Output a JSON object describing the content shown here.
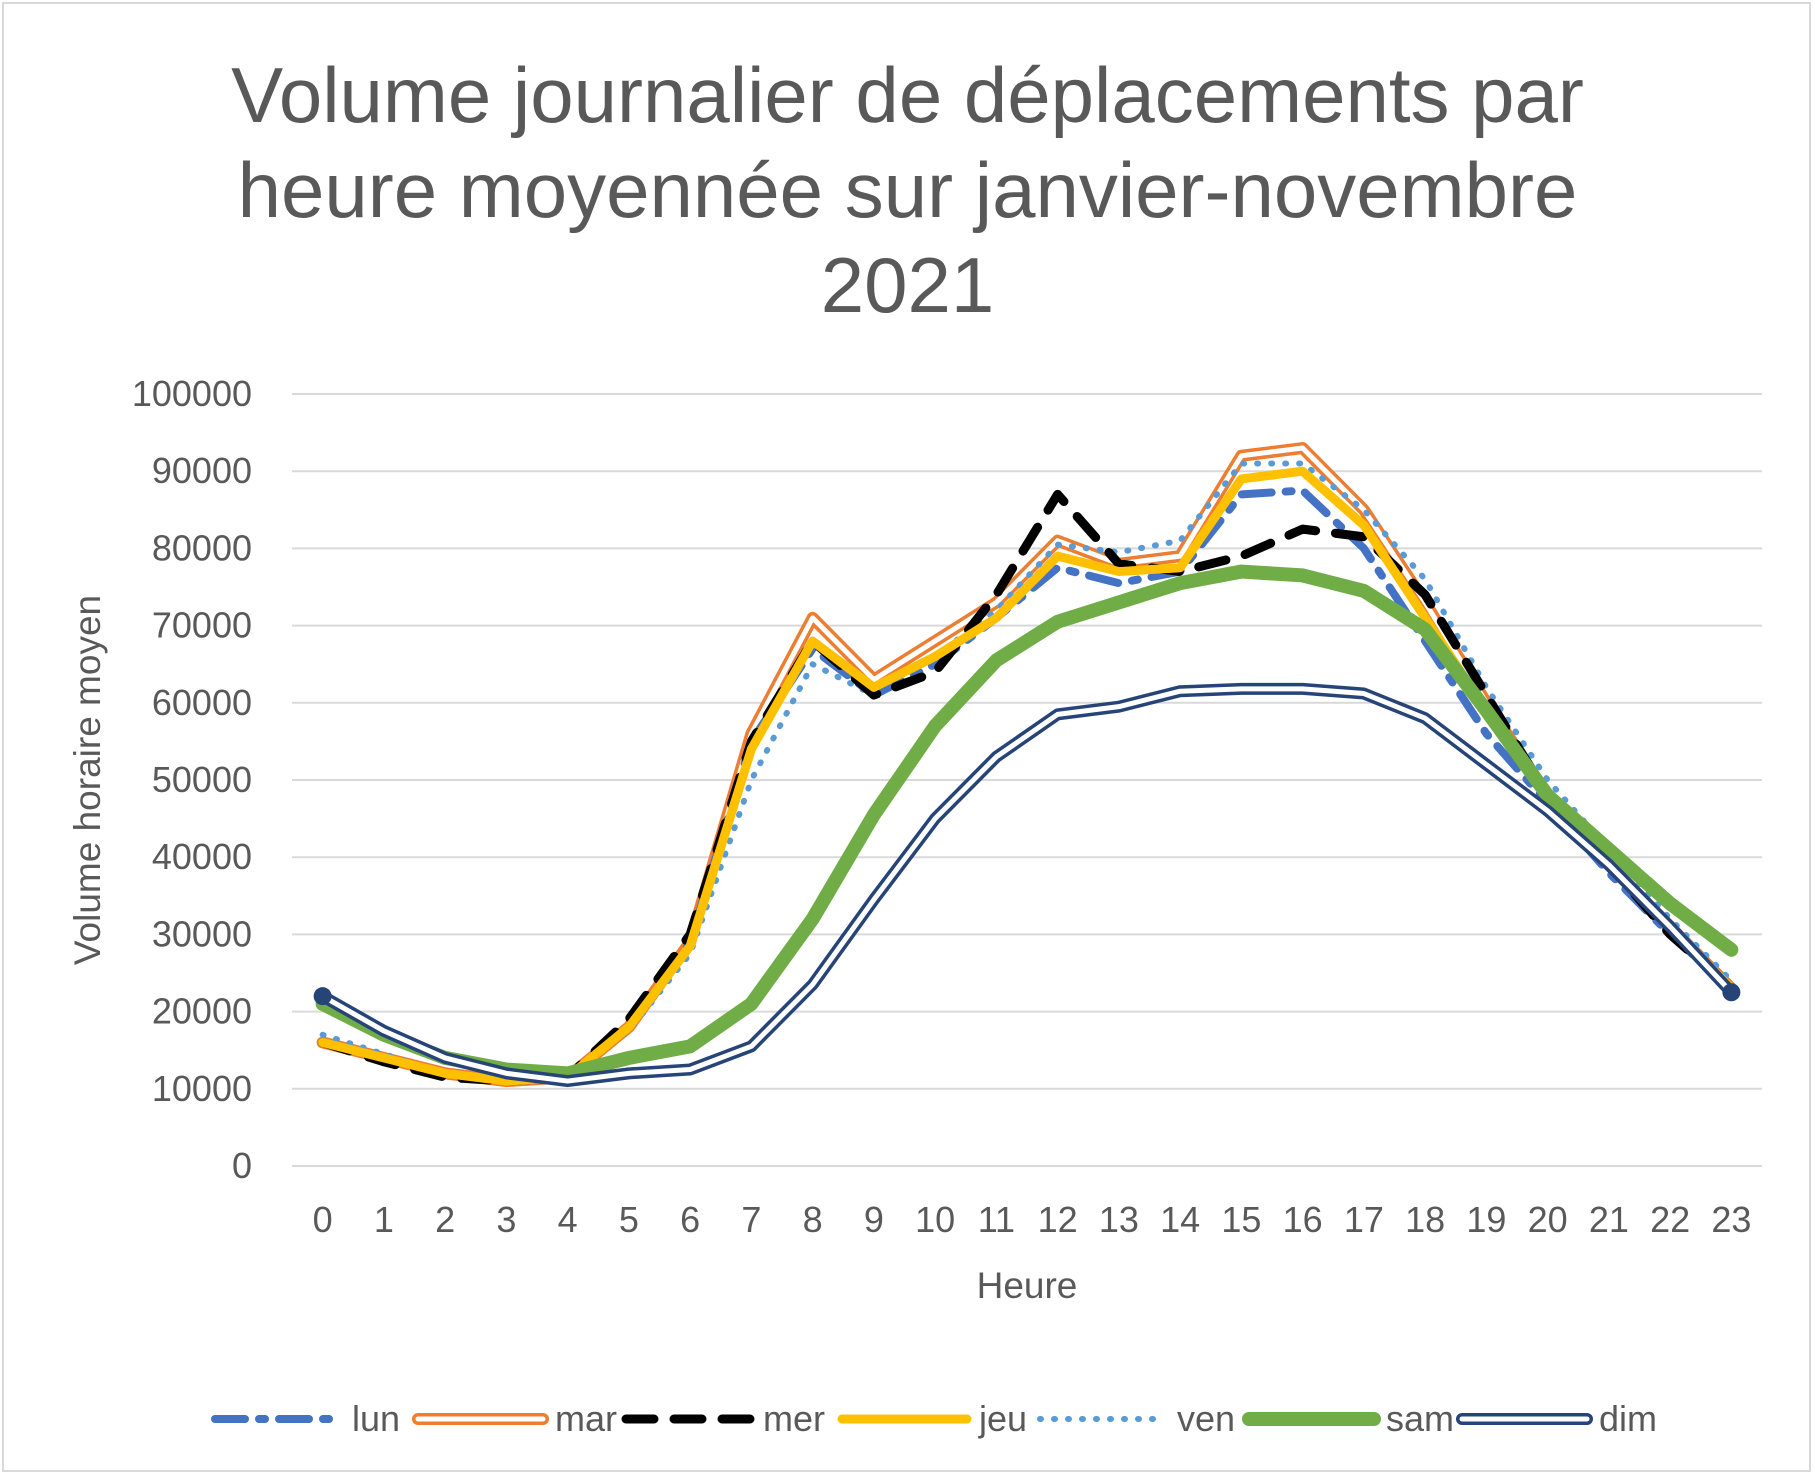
{
  "chart_data": {
    "type": "line",
    "title_lines": [
      "Volume journalier de déplacements par",
      "heure moyennée sur janvier-novembre",
      "2021"
    ],
    "xlabel": "Heure",
    "ylabel": "Volume horaire moyen",
    "ylim": [
      0,
      100000
    ],
    "yticks": [
      "0",
      "10000",
      "20000",
      "30000",
      "40000",
      "50000",
      "60000",
      "70000",
      "80000",
      "90000",
      "100000"
    ],
    "categories": [
      "0",
      "1",
      "2",
      "3",
      "4",
      "5",
      "6",
      "7",
      "8",
      "9",
      "10",
      "11",
      "12",
      "13",
      "14",
      "15",
      "16",
      "17",
      "18",
      "19",
      "20",
      "21",
      "22",
      "23"
    ],
    "grid": true,
    "legend_position": "bottom",
    "series": [
      {
        "name": "lun",
        "color": "#4472C4",
        "style": "dash-dot",
        "values": [
          16000,
          14000,
          12000,
          11000,
          11500,
          18000,
          29000,
          55000,
          67000,
          61000,
          65000,
          71000,
          77500,
          75500,
          77000,
          87000,
          87500,
          80000,
          68000,
          56000,
          47000,
          38000,
          30000,
          23000
        ]
      },
      {
        "name": "mar",
        "color": "#ED7D31",
        "style": "double",
        "values": [
          16000,
          14000,
          12000,
          11000,
          11500,
          18000,
          29000,
          56000,
          71000,
          63000,
          68000,
          73000,
          81000,
          78000,
          79000,
          92000,
          93000,
          85000,
          73000,
          60000,
          48000,
          39000,
          31000,
          23000
        ]
      },
      {
        "name": "mer",
        "color": "#000000",
        "style": "dash",
        "values": [
          16000,
          13500,
          11500,
          11000,
          11500,
          19000,
          30000,
          55000,
          68000,
          61000,
          64000,
          74000,
          87000,
          78000,
          77000,
          79000,
          82500,
          81500,
          74000,
          61000,
          48000,
          39000,
          30000,
          23000
        ]
      },
      {
        "name": "jeu",
        "color": "#FFC000",
        "style": "solid",
        "values": [
          16000,
          14000,
          12000,
          11000,
          11500,
          18000,
          28500,
          54000,
          68000,
          62000,
          66000,
          71000,
          79000,
          77000,
          77500,
          89000,
          90000,
          83000,
          71000,
          59000,
          48000,
          39000,
          31000,
          23000
        ]
      },
      {
        "name": "ven",
        "color": "#5B9BD5",
        "style": "dot",
        "values": [
          17000,
          14500,
          12000,
          11000,
          11500,
          17500,
          27500,
          50000,
          65000,
          61000,
          66000,
          72000,
          80500,
          79500,
          81000,
          91000,
          91000,
          85000,
          76000,
          62000,
          50000,
          41000,
          32000,
          24000
        ]
      },
      {
        "name": "sam",
        "color": "#70AD47",
        "style": "thick",
        "values": [
          21000,
          17000,
          14000,
          12500,
          12000,
          14000,
          15500,
          21000,
          32000,
          45500,
          57000,
          65500,
          70500,
          73000,
          75500,
          77000,
          76500,
          74500,
          69500,
          59000,
          48000,
          41000,
          34000,
          28000
        ]
      },
      {
        "name": "dim",
        "color": "#264478",
        "style": "double",
        "values": [
          22000,
          17500,
          14000,
          12000,
          11000,
          12000,
          12500,
          15500,
          23500,
          34500,
          45000,
          53000,
          58500,
          59500,
          61500,
          61800,
          61800,
          61200,
          58000,
          52000,
          46000,
          39000,
          31000,
          22500
        ]
      }
    ]
  }
}
